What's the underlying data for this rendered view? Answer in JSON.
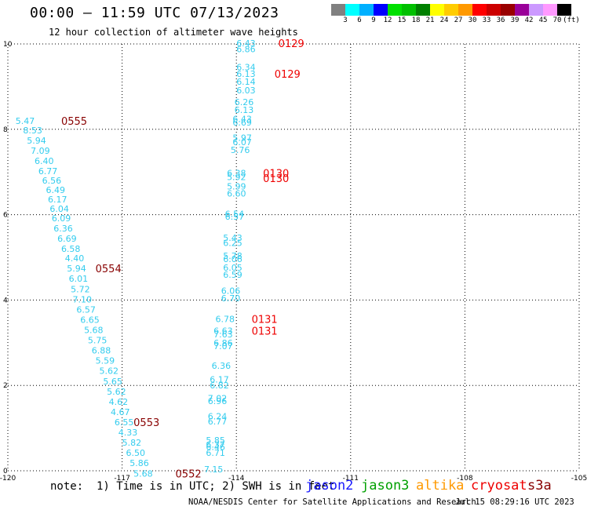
{
  "header": {
    "title": "00:00 – 11:59 UTC 07/13/2023",
    "subtitle": "12 hour collection of altimeter wave heights"
  },
  "colorbar": {
    "colors": [
      "#808080",
      "#00ffff",
      "#00b0ff",
      "#0000ff",
      "#00e000",
      "#00c000",
      "#008000",
      "#ffff00",
      "#ffcc00",
      "#ff9900",
      "#ff0000",
      "#cc0000",
      "#990000",
      "#990099",
      "#cc99ff",
      "#ff99ff",
      "#000000"
    ],
    "labels": [
      "3",
      "6",
      "9",
      "12",
      "15",
      "18",
      "21",
      "24",
      "27",
      "30",
      "33",
      "36",
      "39",
      "42",
      "45",
      "70",
      "(ft)"
    ]
  },
  "chart_data": {
    "type": "scatter",
    "title": "00:00 – 11:59 UTC 07/13/2023",
    "subtitle": "12 hour collection of altimeter wave heights",
    "xlabel": "",
    "ylabel": "",
    "xlim": [
      -120,
      -105
    ],
    "ylim": [
      0,
      10
    ],
    "x_ticks": [
      "-120",
      "-117",
      "-114",
      "-111",
      "-108",
      "-105"
    ],
    "y_ticks": [
      "0",
      "2",
      "4",
      "6",
      "8",
      "10"
    ],
    "grid": true,
    "units": "SWH in feet",
    "series": [
      {
        "name": "jason3",
        "color": "#33ccee",
        "points": [
          {
            "x": -119.8,
            "y": 8.2,
            "v": "5.47"
          },
          {
            "x": -119.6,
            "y": 7.98,
            "v": "8.53"
          },
          {
            "x": -119.5,
            "y": 7.74,
            "v": "5.94"
          },
          {
            "x": -119.4,
            "y": 7.5,
            "v": "7.09"
          },
          {
            "x": -119.3,
            "y": 7.26,
            "v": "6.40"
          },
          {
            "x": -119.2,
            "y": 7.02,
            "v": "6.77"
          },
          {
            "x": -119.1,
            "y": 6.8,
            "v": "6.56"
          },
          {
            "x": -119.0,
            "y": 6.58,
            "v": "6.49"
          },
          {
            "x": -118.95,
            "y": 6.36,
            "v": "6.17"
          },
          {
            "x": -118.9,
            "y": 6.14,
            "v": "6.04"
          },
          {
            "x": -118.85,
            "y": 5.92,
            "v": "6.09"
          },
          {
            "x": -118.8,
            "y": 5.68,
            "v": "6.36"
          },
          {
            "x": -118.7,
            "y": 5.44,
            "v": "6.69"
          },
          {
            "x": -118.6,
            "y": 5.2,
            "v": "6.58"
          },
          {
            "x": -118.5,
            "y": 4.98,
            "v": "4.40"
          },
          {
            "x": -118.45,
            "y": 4.74,
            "v": "5.94"
          },
          {
            "x": -118.4,
            "y": 4.5,
            "v": "6.01"
          },
          {
            "x": -118.35,
            "y": 4.26,
            "v": "5.72"
          },
          {
            "x": -118.3,
            "y": 4.02,
            "v": "7.10"
          },
          {
            "x": -118.2,
            "y": 3.78,
            "v": "6.57"
          },
          {
            "x": -118.1,
            "y": 3.54,
            "v": "6.65"
          },
          {
            "x": -118.0,
            "y": 3.3,
            "v": "5.68"
          },
          {
            "x": -117.9,
            "y": 3.06,
            "v": "5.75"
          },
          {
            "x": -117.8,
            "y": 2.82,
            "v": "6.88"
          },
          {
            "x": -117.7,
            "y": 2.58,
            "v": "5.59"
          },
          {
            "x": -117.6,
            "y": 2.34,
            "v": "5.62"
          },
          {
            "x": -117.5,
            "y": 2.1,
            "v": "5.65"
          },
          {
            "x": -117.4,
            "y": 1.86,
            "v": "5.62"
          },
          {
            "x": -117.35,
            "y": 1.62,
            "v": "4.62"
          },
          {
            "x": -117.3,
            "y": 1.38,
            "v": "4.67"
          },
          {
            "x": -117.2,
            "y": 1.14,
            "v": "6.55"
          },
          {
            "x": -117.1,
            "y": 0.9,
            "v": "4.33"
          },
          {
            "x": -117.0,
            "y": 0.66,
            "v": "5.82"
          },
          {
            "x": -116.9,
            "y": 0.42,
            "v": "6.50"
          },
          {
            "x": -116.8,
            "y": 0.18,
            "v": "5.86"
          },
          {
            "x": -116.7,
            "y": -0.06,
            "v": "5.68"
          },
          {
            "x": -114.0,
            "y": 10.02,
            "v": "6.43"
          },
          {
            "x": -114.0,
            "y": 9.88,
            "v": "6.86"
          },
          {
            "x": -114.0,
            "y": 9.46,
            "v": "6.34"
          },
          {
            "x": -114.0,
            "y": 9.3,
            "v": "6.13"
          },
          {
            "x": -114.0,
            "y": 9.12,
            "v": "6.14"
          },
          {
            "x": -114.0,
            "y": 8.92,
            "v": "6.03"
          },
          {
            "x": -114.05,
            "y": 8.64,
            "v": "6.26"
          },
          {
            "x": -114.05,
            "y": 8.46,
            "v": "6.13"
          },
          {
            "x": -114.1,
            "y": 8.24,
            "v": "6.43"
          },
          {
            "x": -114.1,
            "y": 8.16,
            "v": "6.69"
          },
          {
            "x": -114.1,
            "y": 7.8,
            "v": "5.97"
          },
          {
            "x": -114.1,
            "y": 7.7,
            "v": "6.07"
          },
          {
            "x": -114.15,
            "y": 7.52,
            "v": "5.76"
          },
          {
            "x": -114.25,
            "y": 6.98,
            "v": "6.38"
          },
          {
            "x": -114.25,
            "y": 6.88,
            "v": "5.92"
          },
          {
            "x": -114.25,
            "y": 6.66,
            "v": "5.99"
          },
          {
            "x": -114.25,
            "y": 6.5,
            "v": "6.60"
          },
          {
            "x": -114.3,
            "y": 6.02,
            "v": "6.54"
          },
          {
            "x": -114.3,
            "y": 5.96,
            "v": "6.57"
          },
          {
            "x": -114.35,
            "y": 5.46,
            "v": "5.43"
          },
          {
            "x": -114.35,
            "y": 5.34,
            "v": "6.25"
          },
          {
            "x": -114.35,
            "y": 5.04,
            "v": "5.78"
          },
          {
            "x": -114.35,
            "y": 4.96,
            "v": "6.06"
          },
          {
            "x": -114.35,
            "y": 4.76,
            "v": "6.05"
          },
          {
            "x": -114.35,
            "y": 4.6,
            "v": "6.59"
          },
          {
            "x": -114.4,
            "y": 4.22,
            "v": "6.06"
          },
          {
            "x": -114.4,
            "y": 4.04,
            "v": "6.70"
          },
          {
            "x": -114.55,
            "y": 3.56,
            "v": "6.78"
          },
          {
            "x": -114.6,
            "y": 3.28,
            "v": "6.63"
          },
          {
            "x": -114.6,
            "y": 3.2,
            "v": "7.63"
          },
          {
            "x": -114.6,
            "y": 3.0,
            "v": "6.86"
          },
          {
            "x": -114.6,
            "y": 2.92,
            "v": "7.07"
          },
          {
            "x": -114.65,
            "y": 2.46,
            "v": "6.36"
          },
          {
            "x": -114.7,
            "y": 2.14,
            "v": "6.17"
          },
          {
            "x": -114.7,
            "y": 2.0,
            "v": "6.82"
          },
          {
            "x": -114.75,
            "y": 1.7,
            "v": "7.02"
          },
          {
            "x": -114.75,
            "y": 1.64,
            "v": "6.96"
          },
          {
            "x": -114.75,
            "y": 1.28,
            "v": "6.24"
          },
          {
            "x": -114.75,
            "y": 1.16,
            "v": "6.77"
          },
          {
            "x": -114.8,
            "y": 0.72,
            "v": "5.85"
          },
          {
            "x": -114.8,
            "y": 0.62,
            "v": "6.37"
          },
          {
            "x": -114.8,
            "y": 0.56,
            "v": "6.46"
          },
          {
            "x": -114.8,
            "y": 0.42,
            "v": "6.71"
          },
          {
            "x": -114.85,
            "y": 0.04,
            "v": "7.15"
          }
        ]
      }
    ],
    "time_labels": [
      {
        "x": -118.6,
        "y": 8.2,
        "text": "0555",
        "color": "#880000"
      },
      {
        "x": -117.7,
        "y": 4.74,
        "text": "0554",
        "color": "#880000"
      },
      {
        "x": -116.7,
        "y": 1.14,
        "text": "0553",
        "color": "#880000"
      },
      {
        "x": -115.6,
        "y": -0.06,
        "text": "0552",
        "color": "#880000"
      },
      {
        "x": -112.9,
        "y": 10.02,
        "text": "0129",
        "color": "#ee0000"
      },
      {
        "x": -113.0,
        "y": 9.3,
        "text": "0129",
        "color": "#ee0000"
      },
      {
        "x": -113.3,
        "y": 6.98,
        "text": "0130",
        "color": "#ee0000"
      },
      {
        "x": -113.3,
        "y": 6.86,
        "text": "0130",
        "color": "#ee0000"
      },
      {
        "x": -113.6,
        "y": 3.56,
        "text": "0131",
        "color": "#ee0000"
      },
      {
        "x": -113.6,
        "y": 3.28,
        "text": "0131",
        "color": "#ee0000"
      }
    ]
  },
  "footer": {
    "note": "note:  1) Time is in UTC; 2) SWH is in feet",
    "credit": "NOAA/NESDIS Center for Satellite Applications and Research",
    "timestamp": "Jul 15 08:29:16 UTC 2023"
  },
  "legend": [
    {
      "label": "jason2",
      "color": "#1a1aff"
    },
    {
      "label": "jason3",
      "color": "#00a000"
    },
    {
      "label": "altika",
      "color": "#ff9900"
    },
    {
      "label": "cryosat",
      "color": "#ee0000"
    },
    {
      "label": "s3a",
      "color": "#880000"
    }
  ]
}
